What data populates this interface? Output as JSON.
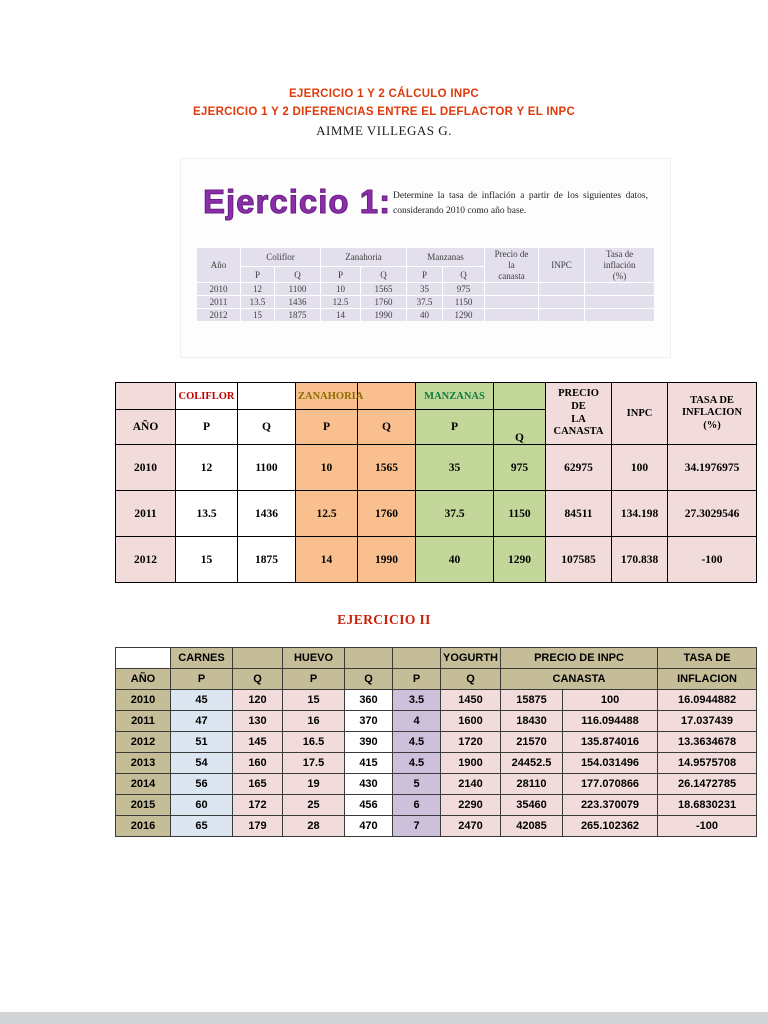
{
  "colors": {
    "title_red": "#df3a0b",
    "section2_red": "#cc2008",
    "purple_heading": "#8b2fa8",
    "table1_pink": "#f2dcdb",
    "table1_orange": "#fabf8f",
    "table1_green": "#c4d79b",
    "coliflor_text": "#c00000",
    "zanahoria_text": "#8a6d00",
    "manzanas_text": "#0f7b3c",
    "table2_olive": "#c4bd97",
    "table2_blue": "#dce6f1",
    "table2_lavender": "#ccc0da",
    "embedded_table_bg": "#e4dfec"
  },
  "doc": {
    "title_line1": "EJERCICIO 1 Y 2 CÁLCULO INPC",
    "title_line2": "EJERCICIO 1 Y 2 DIFERENCIAS ENTRE EL DEFLACTOR Y EL INPC",
    "author": "AIMME VILLEGAS G.",
    "section2_title": "EJERCICIO II"
  },
  "exercise1": {
    "heading": "Ejercicio 1:",
    "instruction": "Determine la tasa de inflación a partir de los siguientes datos, considerando 2010 como año base.",
    "table": {
      "h_ano": "Año",
      "g_coliflor": "Coliflor",
      "g_zanahoria": "Zanahoria",
      "g_manzanas": "Manzanas",
      "h_p": "P",
      "h_q": "Q",
      "h_canasta": "Precio de\nla\ncanasta",
      "h_inpc": "INPC",
      "h_tasa": "Tasa de\ninflación\n(%)",
      "rows": [
        [
          "2010",
          "12",
          "1100",
          "10",
          "1565",
          "35",
          "975",
          "",
          "",
          ""
        ],
        [
          "2011",
          "13.5",
          "1436",
          "12.5",
          "1760",
          "37.5",
          "1150",
          "",
          "",
          ""
        ],
        [
          "2012",
          "15",
          "1875",
          "14",
          "1990",
          "40",
          "1290",
          "",
          "",
          ""
        ]
      ]
    }
  },
  "table1": {
    "g_coliflor": "COLIFLOR",
    "g_zanahoria": "ZANAHORIA",
    "g_manzanas": "MANZANAS",
    "h_ano": "AÑO",
    "h_p": "P",
    "h_q": "Q",
    "h_canasta": "PRECIO\nDE\nLA\nCANASTA",
    "h_inpc": "INPC",
    "h_tasa": "TASA DE\nINFLACION\n(%)",
    "col_classes": [
      "bg-pink",
      "bg-white",
      "bg-white",
      "bg-orange",
      "bg-orange",
      "bg-green",
      "bg-green",
      "bg-pink",
      "bg-pink",
      "bg-pink"
    ],
    "rows": [
      [
        "2010",
        "12",
        "1100",
        "10",
        "1565",
        "35",
        "975",
        "62975",
        "100",
        "34.1976975"
      ],
      [
        "2011",
        "13.5",
        "1436",
        "12.5",
        "1760",
        "37.5",
        "1150",
        "84511",
        "134.198",
        "27.3029546"
      ],
      [
        "2012",
        "15",
        "1875",
        "14",
        "1990",
        "40",
        "1290",
        "107585",
        "170.838",
        "-100"
      ]
    ]
  },
  "table2": {
    "g_carnes": "CARNES",
    "g_huevo": "HUEVO",
    "g_yogurth": "YOGURTH",
    "h_precio_inpc": "PRECIO DE INPC",
    "h_tasa_top": "TASA DE",
    "h_ano": "AÑO",
    "h_p": "P",
    "h_q": "Q",
    "h_canasta": "CANASTA",
    "h_inflacion": "INFLACION",
    "col_classes": [
      "bg-olive",
      "bg-blue",
      "bg-pink2",
      "bg-pink2",
      "bg-white2",
      "bg-lav",
      "bg-pink2",
      "bg-pink2",
      "bg-pink2",
      "bg-pink2"
    ],
    "rows": [
      [
        "2010",
        "45",
        "120",
        "15",
        "360",
        "3.5",
        "1450",
        "15875",
        "100",
        "16.0944882"
      ],
      [
        "2011",
        "47",
        "130",
        "16",
        "370",
        "4",
        "1600",
        "18430",
        "116.094488",
        "17.037439"
      ],
      [
        "2012",
        "51",
        "145",
        "16.5",
        "390",
        "4.5",
        "1720",
        "21570",
        "135.874016",
        "13.3634678"
      ],
      [
        "2013",
        "54",
        "160",
        "17.5",
        "415",
        "4.5",
        "1900",
        "24452.5",
        "154.031496",
        "14.9575708"
      ],
      [
        "2014",
        "56",
        "165",
        "19",
        "430",
        "5",
        "2140",
        "28110",
        "177.070866",
        "26.1472785"
      ],
      [
        "2015",
        "60",
        "172",
        "25",
        "456",
        "6",
        "2290",
        "35460",
        "223.370079",
        "18.6830231"
      ],
      [
        "2016",
        "65",
        "179",
        "28",
        "470",
        "7",
        "2470",
        "42085",
        "265.102362",
        "-100"
      ]
    ]
  }
}
